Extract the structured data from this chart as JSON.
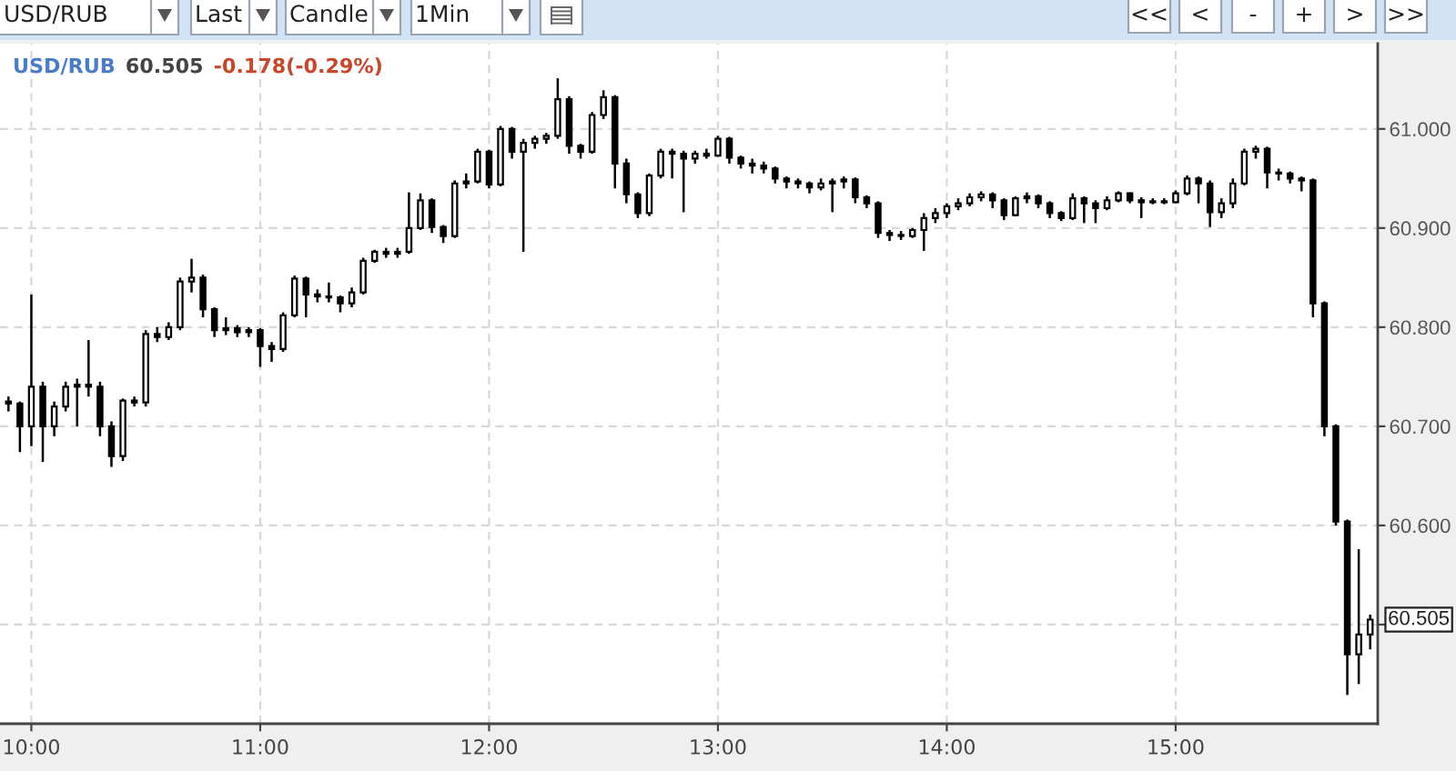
{
  "chart_data": {
    "type": "candlestick",
    "title": "USD/RUB",
    "subtitle": "60.505",
    "annotations": [
      "-0.178(-0.29%)",
      "60.505",
      "USD/RUB",
      "Last",
      "Candle",
      "1Min",
      "<<",
      "<",
      "-",
      "+",
      ">",
      ">>"
    ],
    "color": "#000000",
    "x": [
      9.9,
      9.95,
      10.0,
      10.05,
      10.1,
      10.15,
      10.2,
      10.25,
      10.3,
      10.35,
      10.4,
      10.45,
      10.5,
      10.55,
      10.6,
      10.65,
      10.7,
      10.75,
      10.8,
      10.85,
      10.9,
      10.95,
      11.0,
      11.05,
      11.1,
      11.15,
      11.2,
      11.25,
      11.3,
      11.35,
      11.4,
      11.45,
      11.5,
      11.55,
      11.6,
      11.65,
      11.7,
      11.75,
      11.8,
      11.85,
      11.9,
      11.95,
      12.0,
      12.05,
      12.1,
      12.15,
      12.2,
      12.25,
      12.3,
      12.35,
      12.4,
      12.45,
      12.5,
      12.55,
      12.6,
      12.65,
      12.7,
      12.75,
      12.8,
      12.85,
      12.9,
      12.95,
      13.0,
      13.05,
      13.1,
      13.15,
      13.2,
      13.25,
      13.3,
      13.35,
      13.4,
      13.45,
      13.5,
      13.55,
      13.6,
      13.65,
      13.7,
      13.75,
      13.8,
      13.85,
      13.9,
      13.95,
      14.0,
      14.05,
      14.1,
      14.15,
      14.2,
      14.25,
      14.3,
      14.35,
      14.4,
      14.45,
      14.5,
      14.55,
      14.6,
      14.65,
      14.7,
      14.75,
      14.8,
      14.85,
      14.9,
      14.95,
      15.0,
      15.05,
      15.1,
      15.15,
      15.2,
      15.25,
      15.3,
      15.35,
      15.4,
      15.45,
      15.5,
      15.55,
      15.6,
      15.65,
      15.7,
      15.75,
      15.8,
      15.85
    ],
    "ohlc": [
      [
        60.725,
        60.73,
        60.715,
        60.723
      ],
      [
        60.723,
        60.725,
        60.674,
        60.7
      ],
      [
        60.7,
        60.833,
        60.68,
        60.74
      ],
      [
        60.74,
        60.745,
        60.664,
        60.7
      ],
      [
        60.7,
        60.725,
        60.69,
        60.72
      ],
      [
        60.72,
        60.745,
        60.715,
        60.74
      ],
      [
        60.74,
        60.748,
        60.7,
        60.742
      ],
      [
        60.742,
        60.787,
        60.73,
        60.74
      ],
      [
        60.74,
        60.745,
        60.69,
        60.7
      ],
      [
        60.7,
        60.705,
        60.659,
        60.67
      ],
      [
        60.67,
        60.728,
        60.665,
        60.726
      ],
      [
        60.726,
        60.73,
        60.72,
        60.724
      ],
      [
        60.724,
        60.797,
        60.72,
        60.793
      ],
      [
        60.793,
        60.8,
        60.785,
        60.79
      ],
      [
        60.79,
        60.805,
        60.787,
        60.8
      ],
      [
        60.8,
        60.85,
        60.797,
        60.846
      ],
      [
        60.846,
        60.869,
        60.835,
        60.85
      ],
      [
        60.85,
        60.853,
        60.81,
        60.818
      ],
      [
        60.818,
        60.82,
        60.79,
        60.797
      ],
      [
        60.797,
        60.81,
        60.792,
        60.799
      ],
      [
        60.799,
        60.802,
        60.79,
        60.795
      ],
      [
        60.795,
        60.8,
        60.79,
        60.797
      ],
      [
        60.797,
        60.799,
        60.76,
        60.781
      ],
      [
        60.781,
        60.785,
        60.765,
        60.778
      ],
      [
        60.778,
        60.815,
        60.775,
        60.812
      ],
      [
        60.812,
        60.852,
        60.81,
        60.849
      ],
      [
        60.849,
        60.851,
        60.81,
        60.833
      ],
      [
        60.833,
        60.838,
        60.825,
        60.831
      ],
      [
        60.831,
        60.845,
        60.825,
        60.83
      ],
      [
        60.83,
        60.832,
        60.815,
        60.824
      ],
      [
        60.824,
        60.84,
        60.82,
        60.835
      ],
      [
        60.835,
        60.87,
        60.833,
        60.867
      ],
      [
        60.867,
        60.878,
        60.865,
        60.876
      ],
      [
        60.876,
        60.88,
        60.87,
        60.874
      ],
      [
        60.874,
        60.88,
        60.87,
        60.876
      ],
      [
        60.876,
        60.936,
        60.874,
        60.9
      ],
      [
        60.9,
        60.935,
        60.898,
        60.928
      ],
      [
        60.928,
        60.93,
        60.895,
        60.901
      ],
      [
        60.901,
        60.903,
        60.885,
        60.892
      ],
      [
        60.892,
        60.948,
        60.89,
        60.945
      ],
      [
        60.945,
        60.955,
        60.94,
        60.947
      ],
      [
        60.947,
        60.98,
        60.945,
        60.977
      ],
      [
        60.977,
        60.979,
        60.94,
        60.944
      ],
      [
        60.944,
        61.003,
        60.942,
        61.0
      ],
      [
        61.0,
        61.002,
        60.97,
        60.977
      ],
      [
        60.977,
        60.99,
        60.876,
        60.986
      ],
      [
        60.986,
        60.993,
        60.98,
        60.99
      ],
      [
        60.99,
        60.996,
        60.985,
        60.993
      ],
      [
        60.993,
        61.051,
        60.99,
        61.03
      ],
      [
        61.03,
        61.033,
        60.975,
        60.983
      ],
      [
        60.983,
        60.985,
        60.97,
        60.977
      ],
      [
        60.977,
        61.017,
        60.975,
        61.014
      ],
      [
        61.014,
        61.039,
        61.01,
        61.032
      ],
      [
        61.032,
        61.034,
        60.94,
        60.965
      ],
      [
        60.965,
        60.97,
        60.925,
        60.934
      ],
      [
        60.934,
        60.936,
        60.91,
        60.915
      ],
      [
        60.915,
        60.955,
        60.912,
        60.953
      ],
      [
        60.953,
        60.98,
        60.95,
        60.977
      ],
      [
        60.977,
        60.98,
        60.95,
        60.975
      ],
      [
        60.975,
        60.978,
        60.916,
        60.97
      ],
      [
        60.97,
        60.978,
        60.965,
        60.975
      ],
      [
        60.975,
        60.98,
        60.97,
        60.973
      ],
      [
        60.973,
        60.993,
        60.972,
        60.99
      ],
      [
        60.99,
        60.992,
        60.965,
        60.971
      ],
      [
        60.971,
        60.973,
        60.96,
        60.965
      ],
      [
        60.965,
        60.97,
        60.955,
        60.963
      ],
      [
        60.963,
        60.967,
        60.955,
        60.96
      ],
      [
        60.96,
        60.962,
        60.945,
        60.95
      ],
      [
        60.95,
        60.952,
        60.94,
        60.947
      ],
      [
        60.947,
        60.95,
        60.94,
        60.945
      ],
      [
        60.945,
        60.947,
        60.935,
        60.941
      ],
      [
        60.941,
        60.95,
        60.938,
        60.945
      ],
      [
        60.945,
        60.95,
        60.916,
        60.947
      ],
      [
        60.947,
        60.952,
        60.94,
        60.949
      ],
      [
        60.949,
        60.951,
        60.925,
        60.931
      ],
      [
        60.931,
        60.933,
        60.92,
        60.925
      ],
      [
        60.925,
        60.927,
        60.89,
        60.895
      ],
      [
        60.895,
        60.898,
        60.887,
        60.893
      ],
      [
        60.893,
        60.897,
        60.888,
        60.892
      ],
      [
        60.892,
        60.9,
        60.89,
        60.898
      ],
      [
        60.898,
        60.915,
        60.877,
        60.91
      ],
      [
        60.91,
        60.92,
        60.905,
        60.915
      ],
      [
        60.915,
        60.925,
        60.91,
        60.922
      ],
      [
        60.922,
        60.93,
        60.918,
        60.925
      ],
      [
        60.925,
        60.935,
        60.922,
        60.931
      ],
      [
        60.931,
        60.937,
        60.927,
        60.934
      ],
      [
        60.934,
        60.936,
        60.92,
        60.928
      ],
      [
        60.928,
        60.93,
        60.908,
        60.913
      ],
      [
        60.913,
        60.932,
        60.912,
        60.93
      ],
      [
        60.93,
        60.936,
        60.925,
        60.932
      ],
      [
        60.932,
        60.934,
        60.92,
        60.925
      ],
      [
        60.925,
        60.927,
        60.91,
        60.915
      ],
      [
        60.915,
        60.917,
        60.907,
        60.91
      ],
      [
        60.91,
        60.935,
        60.908,
        60.93
      ],
      [
        60.93,
        60.932,
        60.905,
        60.925
      ],
      [
        60.925,
        60.928,
        60.905,
        60.92
      ],
      [
        60.92,
        60.932,
        60.918,
        60.928
      ],
      [
        60.928,
        60.937,
        60.926,
        60.935
      ],
      [
        60.935,
        60.936,
        60.925,
        60.928
      ],
      [
        60.928,
        60.931,
        60.91,
        60.926
      ],
      [
        60.926,
        60.93,
        60.924,
        60.927
      ],
      [
        60.927,
        60.93,
        60.924,
        60.926
      ],
      [
        60.926,
        60.938,
        60.925,
        60.935
      ],
      [
        60.935,
        60.953,
        60.933,
        60.95
      ],
      [
        60.95,
        60.952,
        60.925,
        60.945
      ],
      [
        60.945,
        60.948,
        60.901,
        60.916
      ],
      [
        60.916,
        60.93,
        60.91,
        60.925
      ],
      [
        60.925,
        60.95,
        60.92,
        60.945
      ],
      [
        60.945,
        60.98,
        60.943,
        60.977
      ],
      [
        60.977,
        60.983,
        60.97,
        60.98
      ],
      [
        60.98,
        60.982,
        60.94,
        60.956
      ],
      [
        60.956,
        60.96,
        60.948,
        60.955
      ],
      [
        60.955,
        60.957,
        60.945,
        60.95
      ],
      [
        60.95,
        60.952,
        60.937,
        60.948
      ],
      [
        60.948,
        60.95,
        60.81,
        60.824
      ],
      [
        60.824,
        60.826,
        60.69,
        60.7
      ],
      [
        60.7,
        60.702,
        60.6,
        60.604
      ],
      [
        60.604,
        60.606,
        60.429,
        60.47
      ],
      [
        60.47,
        60.576,
        60.44,
        60.49
      ],
      [
        60.49,
        60.51,
        60.475,
        60.505
      ]
    ],
    "xlim": [
      9.863,
      15.883
    ],
    "ylim": [
      60.4,
      61.086
    ],
    "xticks": [
      {
        "value": 10,
        "label": "10:00"
      },
      {
        "value": 11,
        "label": "11:00"
      },
      {
        "value": 12,
        "label": "12:00"
      },
      {
        "value": 13,
        "label": "13:00"
      },
      {
        "value": 14,
        "label": "14:00"
      },
      {
        "value": 15,
        "label": "15:00"
      }
    ],
    "yticks": [
      {
        "value": 60.5,
        "label": null
      },
      {
        "value": 60.6,
        "label": "60.600"
      },
      {
        "value": 60.7,
        "label": "60.700"
      },
      {
        "value": 60.8,
        "label": "60.800"
      },
      {
        "value": 60.9,
        "label": "60.900"
      },
      {
        "value": 61.0,
        "label": "61.000"
      }
    ],
    "grid": true
  }
}
